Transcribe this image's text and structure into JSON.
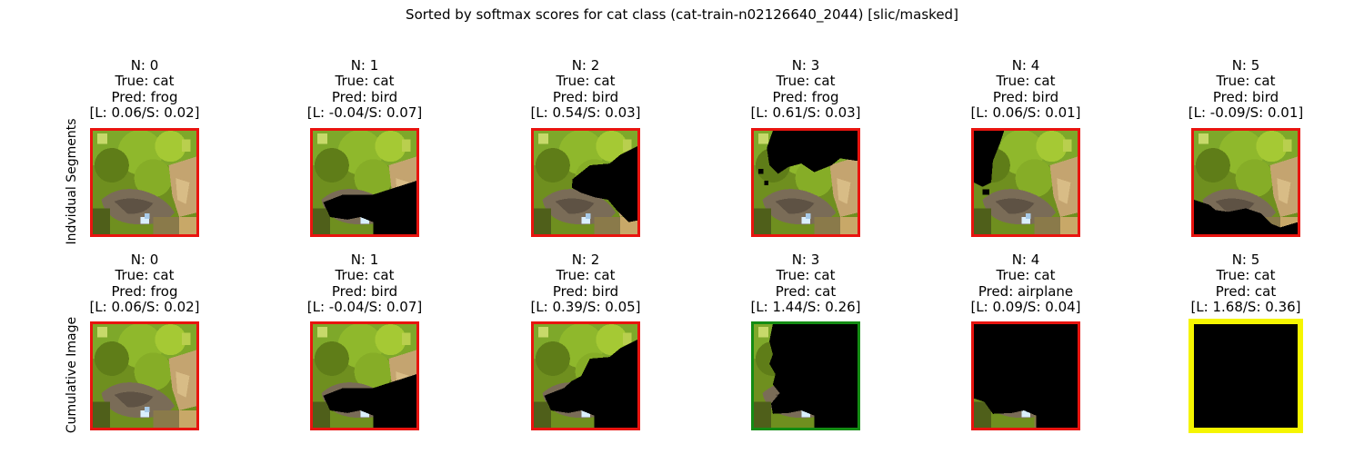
{
  "suptitle": "Sorted by softmax scores for cat class (cat-train-n02126640_2044) [slic/masked]",
  "row_labels": [
    "Indvidual Segments",
    "Cumulative Image"
  ],
  "colors": {
    "red": "#e8140f",
    "green": "#148c14",
    "yellow": "#f5f500",
    "black": "#000000"
  },
  "rows": [
    {
      "panels": [
        {
          "n": "N: 0",
          "true": "True: cat",
          "pred": "Pred: frog",
          "scores": "[L: 0.06/S: 0.02]",
          "border": "red",
          "mask": "none"
        },
        {
          "n": "N: 1",
          "true": "True: cat",
          "pred": "Pred: bird",
          "scores": "[L: -0.04/S: 0.07]",
          "border": "red",
          "mask": "lower-right"
        },
        {
          "n": "N: 2",
          "true": "True: cat",
          "pred": "Pred: bird",
          "scores": "[L: 0.54/S: 0.03]",
          "border": "red",
          "mask": "right-mid"
        },
        {
          "n": "N: 3",
          "true": "True: cat",
          "pred": "Pred: frog",
          "scores": "[L: 0.61/S: 0.03]",
          "border": "red",
          "mask": "top"
        },
        {
          "n": "N: 4",
          "true": "True: cat",
          "pred": "Pred: bird",
          "scores": "[L: 0.06/S: 0.01]",
          "border": "red",
          "mask": "left"
        },
        {
          "n": "N: 5",
          "true": "True: cat",
          "pred": "Pred: bird",
          "scores": "[L: -0.09/S: 0.01]",
          "border": "red",
          "mask": "bottom"
        }
      ]
    },
    {
      "panels": [
        {
          "n": "N: 0",
          "true": "True: cat",
          "pred": "Pred: frog",
          "scores": "[L: 0.06/S: 0.02]",
          "border": "red",
          "mask": "none"
        },
        {
          "n": "N: 1",
          "true": "True: cat",
          "pred": "Pred: bird",
          "scores": "[L: -0.04/S: 0.07]",
          "border": "red",
          "mask": "lower-right"
        },
        {
          "n": "N: 2",
          "true": "True: cat",
          "pred": "Pred: bird",
          "scores": "[L: 0.39/S: 0.05]",
          "border": "red",
          "mask": "cum2"
        },
        {
          "n": "N: 3",
          "true": "True: cat",
          "pred": "Pred: cat",
          "scores": "[L: 1.44/S: 0.26]",
          "border": "green",
          "mask": "cum3"
        },
        {
          "n": "N: 4",
          "true": "True: cat",
          "pred": "Pred: airplane",
          "scores": "[L: 0.09/S: 0.04]",
          "border": "red",
          "mask": "cum4"
        },
        {
          "n": "N: 5",
          "true": "True: cat",
          "pred": "Pred: cat",
          "scores": "[L: 1.68/S: 0.36]",
          "border": "yellow",
          "mask": "all"
        }
      ]
    }
  ]
}
